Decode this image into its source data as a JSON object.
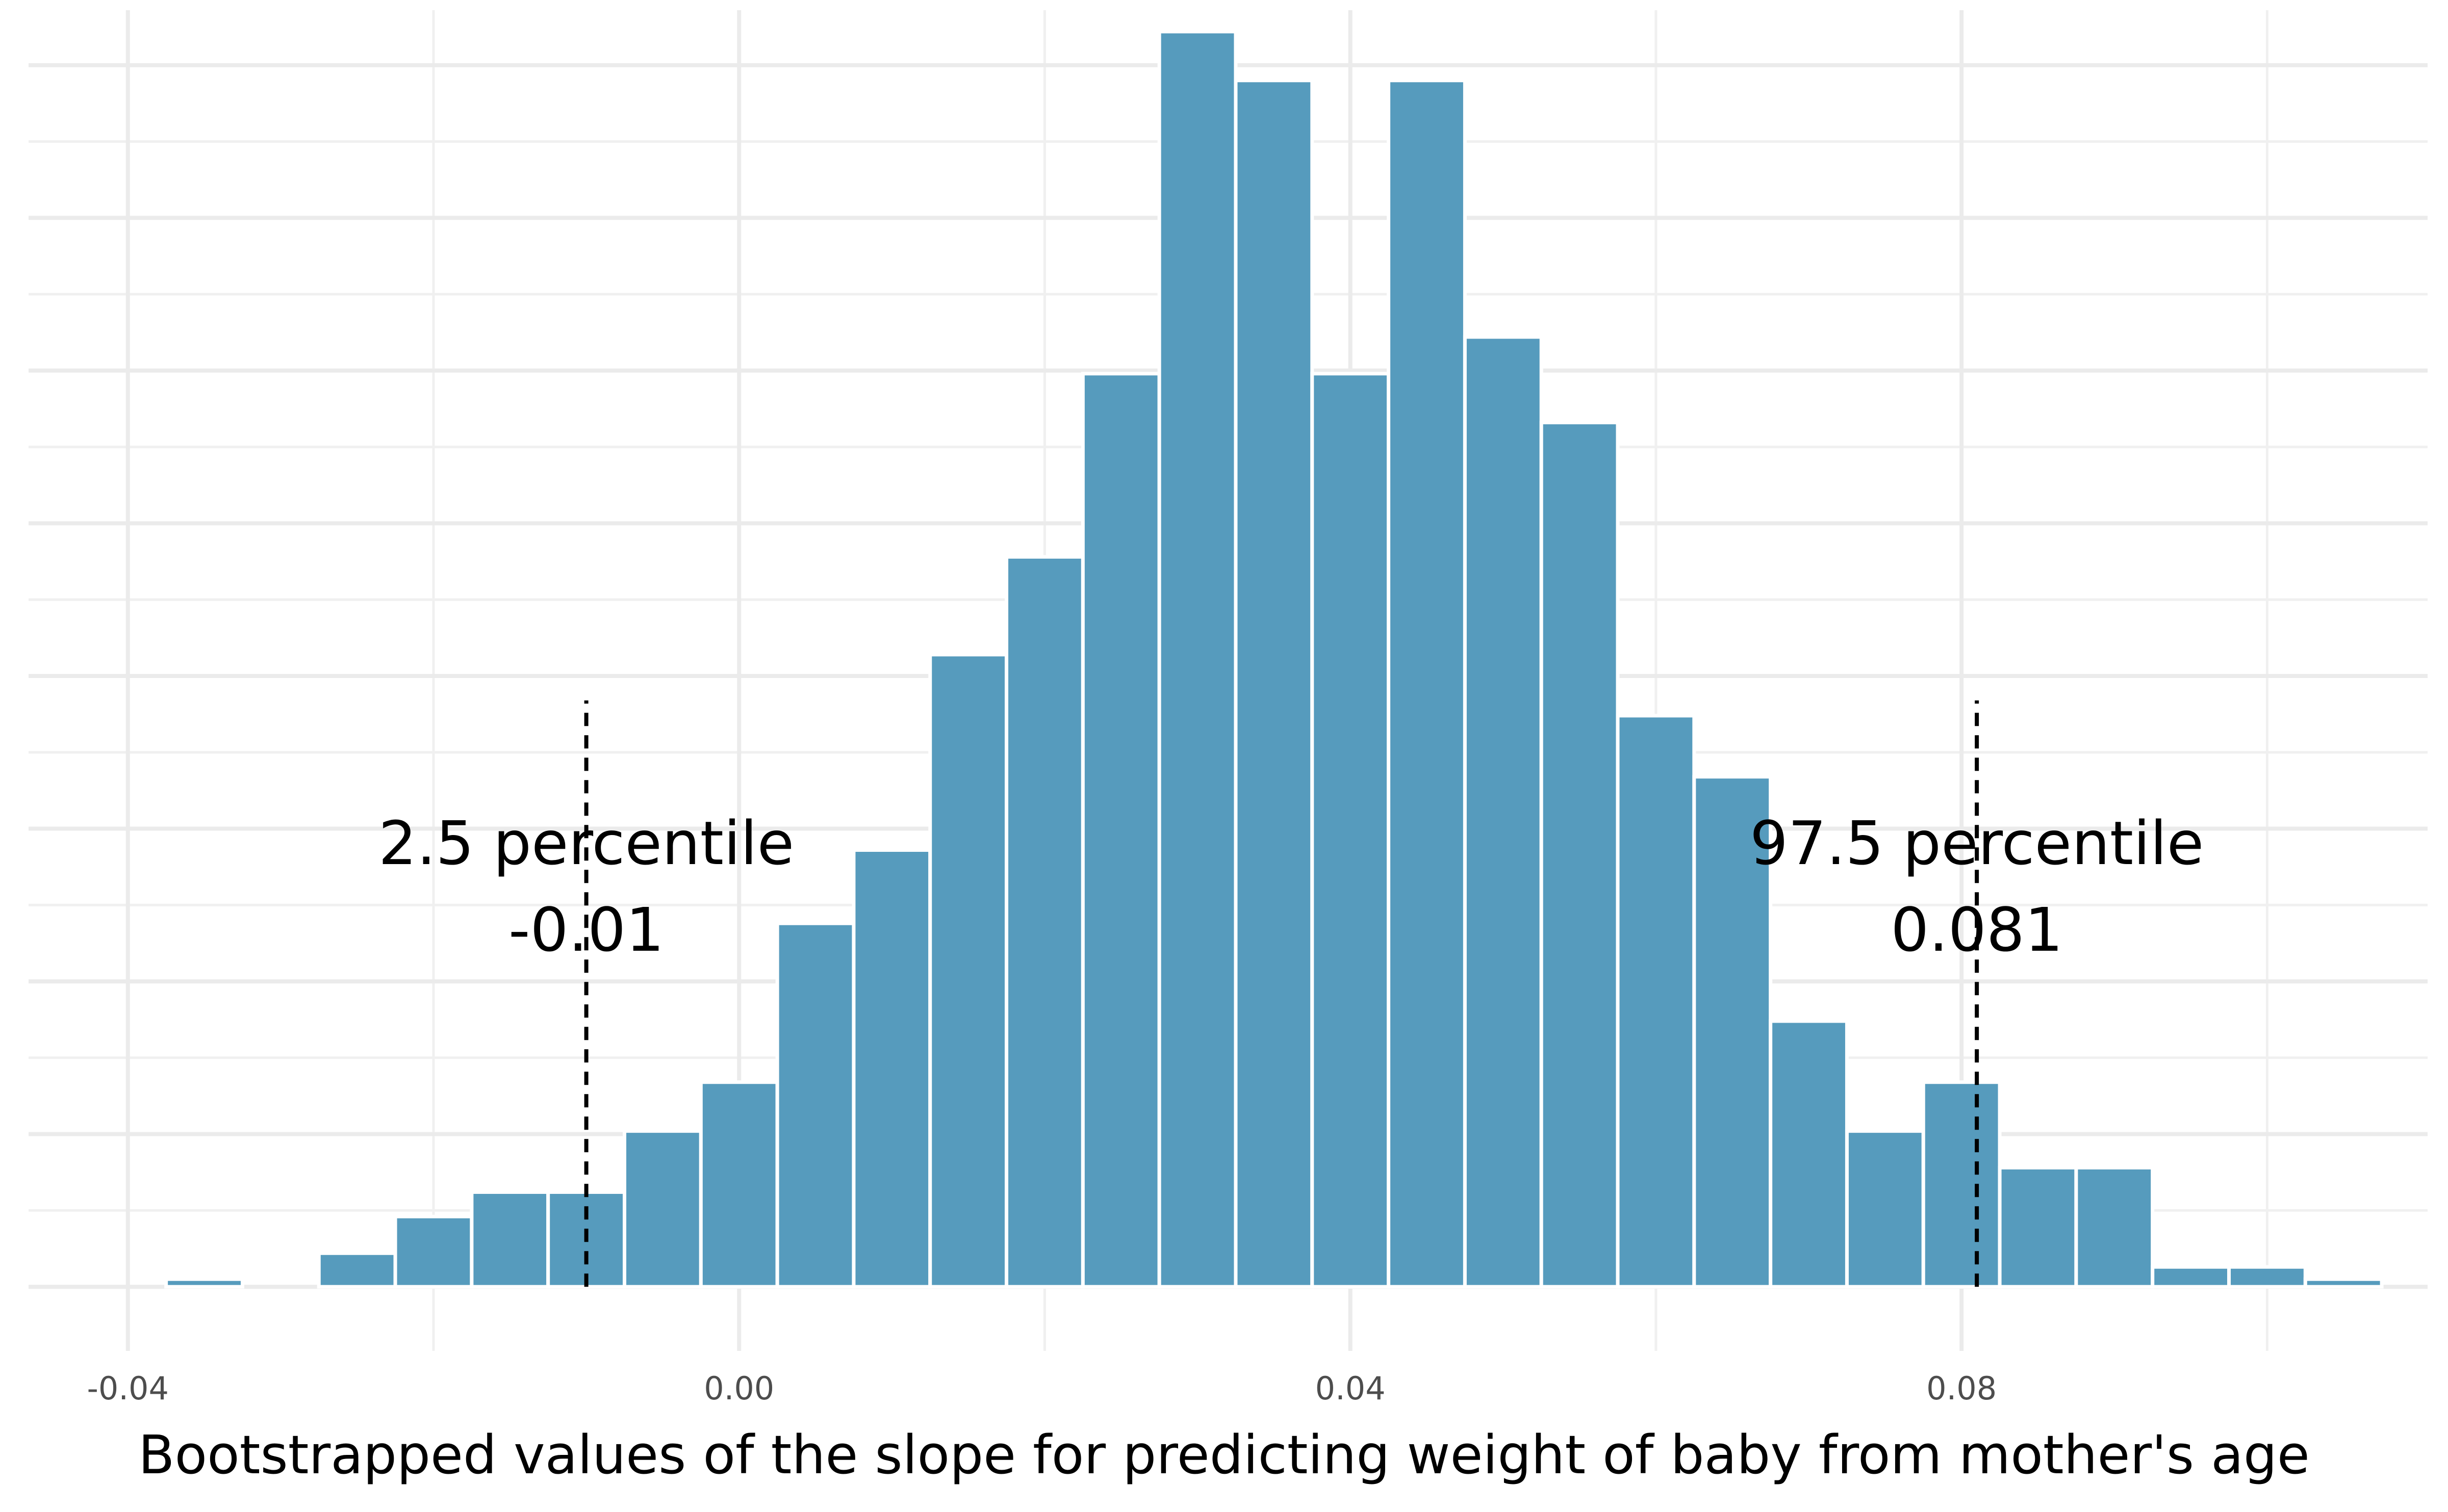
{
  "chart_data": {
    "type": "bar",
    "title": "",
    "xlabel": "Bootstrapped values of the slope for predicting weight of baby from mother's age",
    "ylabel": "",
    "xlim": [
      -0.0465,
      0.1105
    ],
    "ylim": [
      -2.1,
      41.8
    ],
    "x_ticks": [
      -0.04,
      0.0,
      0.04,
      0.08
    ],
    "x_tick_labels": [
      "-0.04",
      "0.00",
      "0.04",
      "0.08"
    ],
    "y_gridlines": [
      0,
      5,
      10,
      15,
      20,
      25,
      30,
      35,
      40
    ],
    "y_tick_labels_shown": false,
    "grid": true,
    "bar_color": "#569BBD",
    "bin_width": 0.005,
    "bin_centers": [
      -0.035,
      -0.03,
      -0.025,
      -0.02,
      -0.015,
      -0.01,
      -0.005,
      0.0,
      0.005,
      0.01,
      0.015,
      0.02,
      0.025,
      0.03,
      0.035,
      0.04,
      0.045,
      0.05,
      0.055,
      0.06,
      0.065,
      0.07,
      0.075,
      0.08,
      0.085,
      0.09,
      0.095,
      0.1,
      0.105
    ],
    "values": [
      0.25,
      0,
      1.1,
      2.3,
      3.1,
      3.1,
      5.1,
      6.7,
      11.9,
      14.3,
      20.7,
      23.9,
      29.9,
      41.1,
      39.5,
      29.9,
      39.5,
      31.1,
      28.3,
      18.7,
      16.7,
      8.7,
      5.1,
      6.7,
      3.9,
      3.9,
      0.65,
      0.65,
      0.25
    ],
    "annotations": [
      {
        "x": -0.01,
        "label": "2.5 percentile",
        "value": "-0.01",
        "line_style": "dashed"
      },
      {
        "x": 0.081,
        "label": "97.5 percentile",
        "value": "0.081",
        "line_style": "dashed"
      }
    ]
  }
}
